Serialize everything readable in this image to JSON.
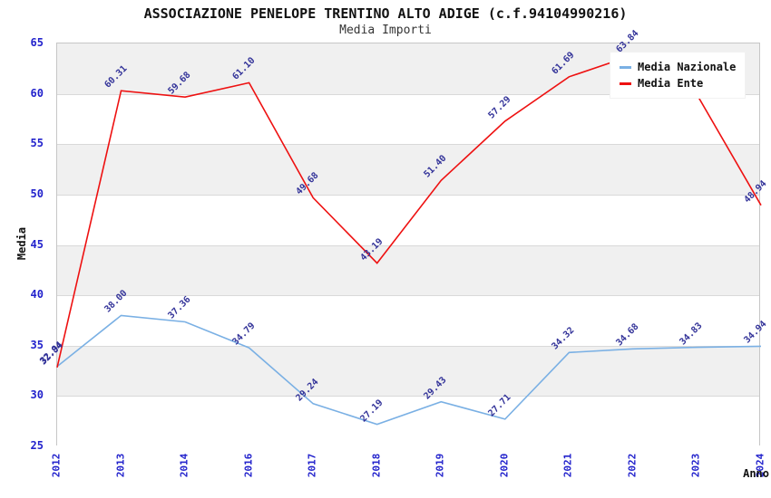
{
  "header": {
    "title": "ASSOCIAZIONE PENELOPE TRENTINO ALTO ADIGE (c.f.94104990216)",
    "subtitle": "Media Importi"
  },
  "colors": {
    "nazionale_line": "#7ab0e4",
    "ente_line": "#ee1111",
    "tick_label": "#2222cc",
    "point_label": "#333399",
    "band_gray": "#f0f0f0",
    "band_white": "#ffffff"
  },
  "chart_data": {
    "type": "line",
    "title": "ASSOCIAZIONE PENELOPE TRENTINO ALTO ADIGE (c.f.94104990216)",
    "subtitle": "Media Importi",
    "xlabel": "Anno",
    "ylabel": "Media",
    "x": [
      "2012",
      "2013",
      "2014",
      "2016",
      "2017",
      "2018",
      "2019",
      "2020",
      "2021",
      "2022",
      "2023",
      "2024"
    ],
    "ylim": [
      25,
      65
    ],
    "yticks": [
      25,
      30,
      35,
      40,
      45,
      50,
      55,
      60,
      65
    ],
    "grid": "horizontal-bands-alternating",
    "legend_position": "top-right",
    "series": [
      {
        "name": "Media Nazionale",
        "color": "#7ab0e4",
        "values": [
          32.94,
          38.0,
          37.36,
          34.79,
          29.24,
          27.19,
          29.43,
          27.71,
          34.32,
          34.68,
          34.83,
          34.94
        ],
        "labels": [
          "32.94",
          "38.00",
          "37.36",
          "34.79",
          "29.24",
          "27.19",
          "29.43",
          "27.71",
          "34.32",
          "34.68",
          "34.83",
          "34.94"
        ]
      },
      {
        "name": "Media Ente",
        "color": "#ee1111",
        "values": [
          32.84,
          60.31,
          59.68,
          61.1,
          49.68,
          43.19,
          51.4,
          57.29,
          61.69,
          63.84,
          59.9,
          48.94
        ],
        "labels": [
          "32.84",
          "60.31",
          "59.68",
          "61.10",
          "49.68",
          "43.19",
          "51.40",
          "57.29",
          "61.69",
          "63.84",
          null,
          "48.94"
        ]
      }
    ]
  }
}
